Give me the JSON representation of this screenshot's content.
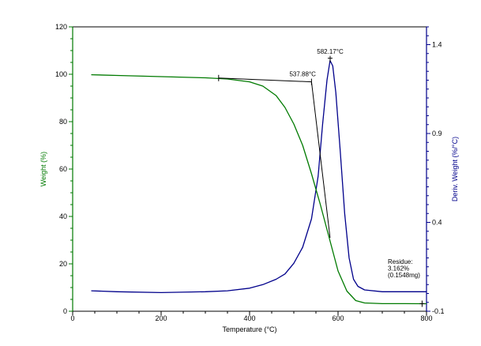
{
  "chart_data": {
    "type": "line",
    "xlabel": "Temperature (°C)",
    "ylabel_left": "Weight (%)",
    "ylabel_right": "Deriv. Weight (%/°C)",
    "xlim": [
      0,
      800
    ],
    "ylim_left": [
      0,
      120
    ],
    "ylim_right": [
      -0.1,
      1.5
    ],
    "x_ticks": [
      0,
      200,
      400,
      600,
      800
    ],
    "y_left_ticks": [
      0,
      20,
      40,
      60,
      80,
      100,
      120
    ],
    "y_right_ticks": [
      -0.1,
      0.4,
      0.9,
      1.4
    ],
    "y_right_tick_labels": [
      "-0.1",
      "0.4",
      "0.9",
      "1.4"
    ],
    "colors": {
      "weight": "#007a00",
      "deriv": "#00008b",
      "axis_left": "#007a00",
      "axis_right": "#00008b",
      "frame": "#000000"
    },
    "series": [
      {
        "axis": "left",
        "x": [
          42,
          100,
          200,
          300,
          350,
          400,
          430,
          460,
          480,
          500,
          520,
          540,
          560,
          580,
          600,
          620,
          640,
          660,
          700,
          750,
          800
        ],
        "y": [
          99.8,
          99.5,
          99.0,
          98.5,
          98.0,
          96.8,
          95.0,
          91.0,
          86.0,
          79.0,
          70.0,
          58.0,
          45.0,
          31.0,
          17.0,
          8.5,
          4.5,
          3.5,
          3.2,
          3.2,
          3.16
        ]
      },
      {
        "axis": "right",
        "x": [
          42,
          100,
          200,
          300,
          350,
          400,
          430,
          460,
          480,
          500,
          520,
          540,
          555,
          565,
          575,
          582,
          588,
          595,
          605,
          615,
          625,
          635,
          645,
          660,
          700,
          750,
          800
        ],
        "y": [
          0.015,
          0.01,
          0.005,
          0.01,
          0.015,
          0.03,
          0.05,
          0.08,
          0.11,
          0.17,
          0.26,
          0.42,
          0.66,
          0.95,
          1.2,
          1.31,
          1.28,
          1.13,
          0.8,
          0.45,
          0.2,
          0.08,
          0.04,
          0.02,
          0.01,
          0.01,
          0.01
        ]
      }
    ],
    "annotations": {
      "onset": {
        "label": "537.88°C",
        "tangent1": [
          [
            330,
            98.4
          ],
          [
            540,
            96.8
          ]
        ],
        "tangent2": [
          [
            540,
            96.8
          ],
          [
            582,
            31.0
          ]
        ]
      },
      "peak": {
        "label": "582.17°C",
        "x": 582.17,
        "y": 1.31
      },
      "residue": {
        "lines": [
          "Residue:",
          "3.162%",
          "(0.1548mg)"
        ],
        "x": 790,
        "y": 3.162
      }
    }
  }
}
